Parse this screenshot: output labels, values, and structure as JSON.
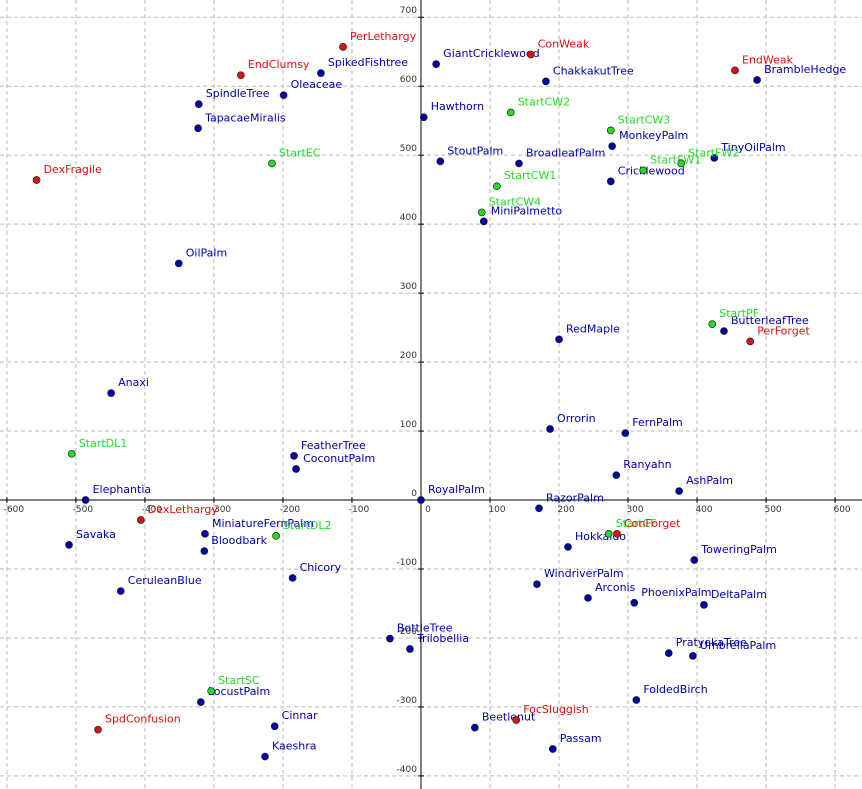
{
  "chart_data": {
    "type": "scatter",
    "xlim": [
      -610,
      639
    ],
    "ylim": [
      -419,
      725
    ],
    "xticks": [
      -600,
      -500,
      -400,
      -300,
      -200,
      -100,
      0,
      100,
      200,
      300,
      400,
      500,
      600
    ],
    "yticks": [
      -400,
      -300,
      -200,
      -100,
      0,
      100,
      200,
      300,
      400,
      500,
      600,
      700
    ],
    "grid": true,
    "series": [
      {
        "color": "#0000aa",
        "labels": [
          "GiantCricklewood",
          "ChakkakutTree",
          "BrambleHedge",
          "SpikedFishtree",
          "Oleaceae",
          "SpindleTree",
          "TapacaeMiralis",
          "Hawthorn",
          "MonkeyPalm",
          "TinyOilPalm",
          "StoutPalm",
          "BroadleafPalm",
          "Cricklewood",
          "MiniPalmetto",
          "OilPalm",
          "RedMaple",
          "ButterleafTree",
          "Anaxi",
          "Orrorin",
          "FernPalm",
          "FeatherTree",
          "CoconutPalm",
          "Ranyahn",
          "AshPalm",
          "Elephantia",
          "RoyalPalm",
          "RazorPalm",
          "MiniatureFernPalm",
          "Bloodbark",
          "Savaka",
          "Hokkaido",
          "ToweringPalm",
          "Chicory",
          "CeruleanBlue",
          "WindriverPalm",
          "Arconis",
          "PhoenixPalm",
          "DeltaPalm",
          "BottleTree",
          "Trilobellia",
          "PratyekaTree",
          "UmbrellaPalm",
          "FoldedBirch",
          "LocustPalm",
          "Cinnar",
          "Beetlenut",
          "Passam",
          "Kaeshra"
        ],
        "x": [
          22,
          181,
          487,
          -145,
          -199,
          -322,
          -323,
          4,
          277,
          425,
          28,
          142,
          275,
          91,
          -351,
          200,
          439,
          -449,
          187,
          296,
          -184,
          -181,
          283,
          374,
          -486,
          0,
          171,
          -313,
          -314,
          -510,
          213,
          396,
          -186,
          -435,
          168,
          242,
          309,
          410,
          -45,
          -16,
          359,
          394,
          312,
          -319,
          -212,
          78,
          191,
          -226
        ],
        "y": [
          632,
          607,
          609,
          619,
          587,
          574,
          539,
          555,
          513,
          496,
          491,
          488,
          462,
          404,
          343,
          233,
          245,
          155,
          103,
          97,
          64,
          45,
          36,
          13,
          0,
          0,
          -12,
          -49,
          -74,
          -65,
          -68,
          -87,
          -113,
          -132,
          -122,
          -142,
          -149,
          -152,
          -201,
          -216,
          -222,
          -226,
          -290,
          -293,
          -328,
          -330,
          -361,
          -372
        ]
      },
      {
        "color": "#22dd22",
        "labels": [
          "StartCW2",
          "StartCW3",
          "StartFW1",
          "StartFW2",
          "StartEC",
          "StartCW1",
          "StartCW4",
          "StartPF",
          "StartDL1",
          "StartDL2",
          "StartCF",
          "StartSC"
        ],
        "x": [
          130,
          275,
          322,
          377,
          -216,
          110,
          88,
          422,
          -506,
          -210,
          272,
          -304
        ],
        "y": [
          562,
          536,
          478,
          488,
          488,
          455,
          417,
          255,
          67,
          -52,
          -49,
          -277
        ]
      },
      {
        "color": "#dd1111",
        "labels": [
          "PerLethargy",
          "ConWeak",
          "EndWeak",
          "EndClumsy",
          "DexFragile",
          "PerForget",
          "DexLethargy",
          "ConForget",
          "FocSluggish",
          "SpdConfusion"
        ],
        "x": [
          -113,
          159,
          455,
          -261,
          -557,
          477,
          -406,
          284,
          138,
          -468
        ],
        "y": [
          657,
          646,
          623,
          616,
          464,
          230,
          -29,
          -49,
          -319,
          -333
        ]
      }
    ]
  }
}
